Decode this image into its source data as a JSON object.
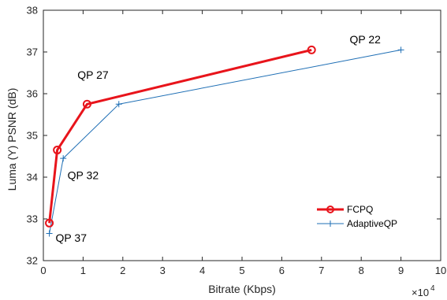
{
  "chart_data": {
    "type": "line",
    "title": "",
    "xlabel": "Bitrate (Kbps)",
    "ylabel": "Luma (Y) PSNR (dB)",
    "x_exponent_label": "×10",
    "x_exponent_power": "4",
    "xlim": [
      0,
      100000
    ],
    "ylim": [
      32,
      38
    ],
    "x_ticks": [
      0,
      10000,
      20000,
      30000,
      40000,
      50000,
      60000,
      70000,
      80000,
      90000,
      100000
    ],
    "x_tick_labels": [
      "0",
      "1",
      "2",
      "3",
      "4",
      "5",
      "6",
      "7",
      "8",
      "9",
      "10"
    ],
    "y_ticks": [
      32,
      33,
      34,
      35,
      36,
      37,
      38
    ],
    "y_tick_labels": [
      "32",
      "33",
      "34",
      "35",
      "36",
      "37",
      "38"
    ],
    "grid": false,
    "legend_position": "bottom-right",
    "series": [
      {
        "name": "FCPQ",
        "color": "#e8141b",
        "marker": "circle",
        "x": [
          1500,
          3500,
          11000,
          67500
        ],
        "y": [
          32.9,
          34.65,
          35.75,
          37.05
        ]
      },
      {
        "name": "AdaptiveQP",
        "color": "#1f6fb5",
        "marker": "plus",
        "x": [
          1500,
          5000,
          19000,
          90000
        ],
        "y": [
          32.65,
          34.45,
          35.75,
          37.05
        ]
      }
    ],
    "annotations": [
      {
        "text": "QP 22",
        "x": 81000,
        "y": 37.3
      },
      {
        "text": "QP 27",
        "x": 12500,
        "y": 36.45
      },
      {
        "text": "QP 32",
        "x": 10000,
        "y": 34.05
      },
      {
        "text": "QP 37",
        "x": 7000,
        "y": 32.55
      }
    ]
  }
}
